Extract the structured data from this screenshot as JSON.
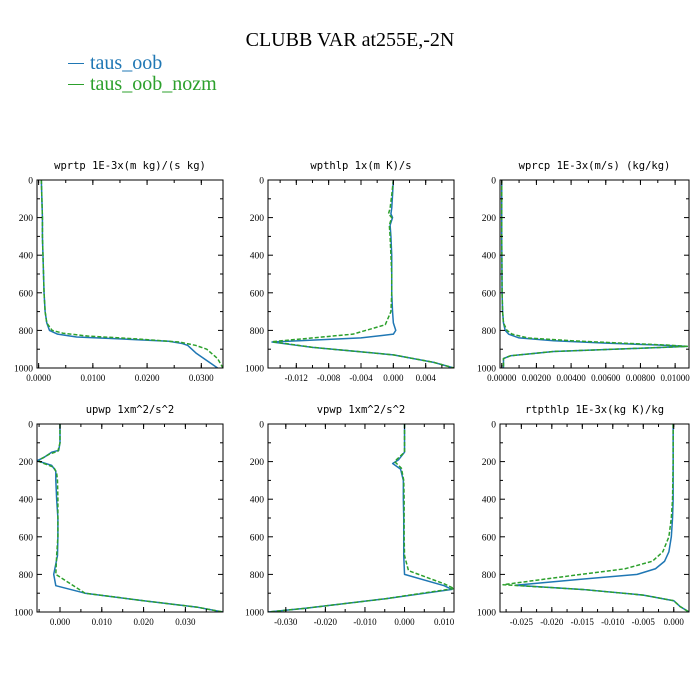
{
  "title": "CLUBB VAR at255E,-2N",
  "legend": [
    {
      "label": "taus_oob",
      "color": "#1f77b4"
    },
    {
      "label": "taus_oob_nozm",
      "color": "#2ca02c"
    }
  ],
  "chart_data": [
    {
      "type": "line",
      "title": "wprtp  1E-3x(m kg)/(s kg)",
      "xlim": [
        -0.0003,
        0.034
      ],
      "ylim": [
        1000,
        0
      ],
      "xticks": [
        0.0,
        0.01,
        0.02,
        0.03
      ],
      "xtick_labels": [
        "0.0000",
        "0.0100",
        "0.0200",
        "0.0300"
      ],
      "yticks": [
        0,
        200,
        400,
        600,
        800,
        1000
      ],
      "series": [
        {
          "name": "taus_oob",
          "color": "#1f77b4",
          "style": "solid",
          "x": [
            0.0005,
            0.0006,
            0.0007,
            0.0007,
            0.0008,
            0.0009,
            0.001,
            0.0012,
            0.0015,
            0.002,
            0.0035,
            0.007,
            0.015,
            0.024,
            0.0265,
            0.0275,
            0.029,
            0.031,
            0.033
          ],
          "y": [
            0,
            100,
            200,
            300,
            400,
            500,
            600,
            700,
            760,
            800,
            820,
            835,
            845,
            858,
            870,
            880,
            920,
            960,
            1000
          ]
        },
        {
          "name": "taus_oob_nozm",
          "color": "#2ca02c",
          "style": "dashed",
          "x": [
            0.0005,
            0.0006,
            0.0007,
            0.0007,
            0.0008,
            0.0009,
            0.001,
            0.0012,
            0.0015,
            0.0025,
            0.0045,
            0.009,
            0.018,
            0.026,
            0.029,
            0.031,
            0.033,
            0.034
          ],
          "y": [
            0,
            100,
            200,
            300,
            400,
            500,
            600,
            700,
            760,
            800,
            815,
            830,
            845,
            862,
            880,
            900,
            950,
            1000
          ]
        }
      ]
    },
    {
      "type": "line",
      "title": "wpthlp  1x(m K)/s",
      "xlim": [
        -0.0155,
        0.0075
      ],
      "ylim": [
        1000,
        0
      ],
      "xticks": [
        -0.012,
        -0.008,
        -0.004,
        0.0,
        0.004
      ],
      "xtick_labels": [
        "-0.012",
        "-0.008",
        "-0.004",
        "0.000",
        "0.004"
      ],
      "yticks": [
        0,
        200,
        400,
        600,
        800,
        1000
      ],
      "series": [
        {
          "name": "taus_oob",
          "color": "#1f77b4",
          "style": "solid",
          "x": [
            0.0,
            -0.0001,
            -0.0002,
            -0.0003,
            -0.0001,
            -0.0004,
            -0.0003,
            -0.0002,
            -0.0002,
            -0.0002,
            -0.0001,
            0.0,
            0.0003,
            0.0,
            -0.004,
            -0.015,
            -0.01,
            0.0,
            0.005,
            0.0075
          ],
          "y": [
            0,
            80,
            150,
            180,
            200,
            240,
            300,
            400,
            500,
            600,
            700,
            760,
            800,
            820,
            840,
            862,
            890,
            930,
            970,
            1000
          ]
        },
        {
          "name": "taus_oob_nozm",
          "color": "#2ca02c",
          "style": "dashed",
          "x": [
            0.0,
            -0.0002,
            -0.0004,
            -0.0006,
            -0.0002,
            -0.0005,
            -0.0004,
            -0.0003,
            -0.0002,
            -0.0002,
            -0.0003,
            -0.001,
            -0.005,
            -0.015,
            -0.01,
            0.0,
            0.005,
            0.0075
          ],
          "y": [
            0,
            80,
            150,
            180,
            200,
            240,
            300,
            400,
            500,
            600,
            700,
            770,
            820,
            860,
            890,
            930,
            970,
            1000
          ]
        }
      ]
    },
    {
      "type": "line",
      "title": "wprcp  1E-3x(m/s) (kg/kg)",
      "xlim": [
        -0.0001,
        0.0108
      ],
      "ylim": [
        1000,
        0
      ],
      "xticks": [
        0.0,
        0.002,
        0.004,
        0.006,
        0.008,
        0.01
      ],
      "xtick_labels": [
        "0.00000",
        "0.00200",
        "0.00400",
        "0.00600",
        "0.00800",
        "0.01000"
      ],
      "yticks": [
        0,
        200,
        400,
        600,
        800,
        1000
      ],
      "series": [
        {
          "name": "taus_oob",
          "color": "#1f77b4",
          "style": "solid",
          "x": [
            0.0,
            0.0,
            2e-05,
            5e-05,
            0.0001,
            0.0002,
            0.0004,
            0.001,
            0.003,
            0.006,
            0.009,
            0.0107,
            0.008,
            0.003,
            0.0005,
            0.0001,
            0.0001
          ],
          "y": [
            0,
            300,
            600,
            700,
            760,
            800,
            820,
            840,
            855,
            868,
            878,
            885,
            895,
            912,
            935,
            950,
            1000
          ]
        },
        {
          "name": "taus_oob_nozm",
          "color": "#2ca02c",
          "style": "dashed",
          "x": [
            0.0,
            0.0,
            2e-05,
            5e-05,
            0.0001,
            0.0003,
            0.0006,
            0.0015,
            0.004,
            0.007,
            0.0095,
            0.0107,
            0.008,
            0.003,
            0.0005,
            0.0001,
            0.0001
          ],
          "y": [
            0,
            300,
            600,
            700,
            760,
            800,
            820,
            840,
            855,
            868,
            878,
            885,
            895,
            912,
            935,
            950,
            1000
          ]
        }
      ]
    },
    {
      "type": "line",
      "title": "upwp  1xm^2/s^2",
      "xlim": [
        -0.0055,
        0.039
      ],
      "ylim": [
        1000,
        0
      ],
      "xticks": [
        0.0,
        0.01,
        0.02,
        0.03
      ],
      "xtick_labels": [
        "0.000",
        "0.010",
        "0.020",
        "0.030"
      ],
      "yticks": [
        0,
        200,
        400,
        600,
        800,
        1000
      ],
      "series": [
        {
          "name": "taus_oob",
          "color": "#1f77b4",
          "style": "solid",
          "x": [
            0.0,
            0.0,
            -0.0003,
            -0.002,
            -0.004,
            -0.0055,
            -0.002,
            -0.001,
            -0.001,
            -0.0008,
            -0.0005,
            -0.0005,
            -0.0006,
            -0.0015,
            -0.001,
            0.006,
            0.02,
            0.033,
            0.039
          ],
          "y": [
            0,
            100,
            140,
            150,
            180,
            195,
            220,
            250,
            300,
            400,
            500,
            600,
            700,
            800,
            860,
            900,
            940,
            975,
            1000
          ]
        },
        {
          "name": "taus_oob_nozm",
          "color": "#2ca02c",
          "style": "dashed",
          "x": [
            0.0,
            0.0,
            -0.0005,
            -0.0025,
            -0.0045,
            -0.005,
            -0.0015,
            -0.0008,
            -0.0006,
            -0.0005,
            -0.0005,
            -0.0005,
            -0.0008,
            -0.001,
            0.006,
            0.02,
            0.033,
            0.039
          ],
          "y": [
            0,
            100,
            145,
            160,
            185,
            200,
            230,
            260,
            300,
            400,
            500,
            600,
            700,
            800,
            900,
            940,
            975,
            1000
          ]
        }
      ]
    },
    {
      "type": "line",
      "title": "vpwp  1xm^2/s^2",
      "xlim": [
        -0.0345,
        0.0125
      ],
      "ylim": [
        1000,
        0
      ],
      "xticks": [
        -0.03,
        -0.02,
        -0.01,
        0.0,
        0.01
      ],
      "xtick_labels": [
        "-0.030",
        "-0.020",
        "-0.010",
        "0.000",
        "0.010"
      ],
      "yticks": [
        0,
        200,
        400,
        600,
        800,
        1000
      ],
      "series": [
        {
          "name": "taus_oob",
          "color": "#1f77b4",
          "style": "solid",
          "x": [
            0.0,
            0.0,
            -0.0015,
            -0.003,
            -0.001,
            -0.0003,
            -0.0003,
            -0.0002,
            -0.0002,
            -0.0002,
            0.0,
            0.01,
            0.012,
            -0.005,
            -0.025,
            -0.0345
          ],
          "y": [
            0,
            150,
            190,
            210,
            240,
            300,
            400,
            500,
            600,
            700,
            800,
            860,
            880,
            930,
            980,
            1000
          ]
        },
        {
          "name": "taus_oob_nozm",
          "color": "#2ca02c",
          "style": "dashed",
          "x": [
            0.0,
            0.0,
            -0.0018,
            -0.0025,
            -0.0008,
            -0.0002,
            -0.0001,
            -0.0001,
            -0.0001,
            0.0,
            0.001,
            0.01,
            0.0125,
            -0.005,
            -0.025,
            -0.0345
          ],
          "y": [
            0,
            150,
            185,
            200,
            235,
            300,
            400,
            500,
            600,
            700,
            780,
            850,
            875,
            930,
            980,
            1000
          ]
        }
      ]
    },
    {
      "type": "line",
      "title": "rtpthlp  1E-3x(kg K)/kg",
      "xlim": [
        -0.0285,
        0.0025
      ],
      "ylim": [
        1000,
        0
      ],
      "xticks": [
        -0.025,
        -0.02,
        -0.015,
        -0.01,
        -0.005,
        0.0
      ],
      "xtick_labels": [
        "-0.025",
        "-0.020",
        "-0.015",
        "-0.010",
        "-0.005",
        "0.000"
      ],
      "yticks": [
        0,
        200,
        400,
        600,
        800,
        1000
      ],
      "series": [
        {
          "name": "taus_oob",
          "color": "#1f77b4",
          "style": "solid",
          "x": [
            -0.0001,
            -0.0001,
            -0.0001,
            -0.0002,
            -0.0004,
            -0.0008,
            -0.0015,
            -0.003,
            -0.006,
            -0.015,
            -0.026,
            -0.015,
            -0.005,
            0.0,
            0.001,
            0.0025
          ],
          "y": [
            0,
            200,
            400,
            500,
            600,
            680,
            730,
            770,
            800,
            825,
            858,
            880,
            910,
            940,
            970,
            1000
          ]
        },
        {
          "name": "taus_oob_nozm",
          "color": "#2ca02c",
          "style": "dashed",
          "x": [
            -0.0001,
            -0.0001,
            -0.0002,
            -0.0004,
            -0.0008,
            -0.0018,
            -0.0035,
            -0.008,
            -0.02,
            -0.028,
            -0.015,
            -0.005,
            0.0,
            0.001,
            0.0025
          ],
          "y": [
            0,
            200,
            400,
            500,
            600,
            680,
            730,
            770,
            820,
            855,
            880,
            910,
            940,
            970,
            1000
          ]
        }
      ]
    }
  ]
}
